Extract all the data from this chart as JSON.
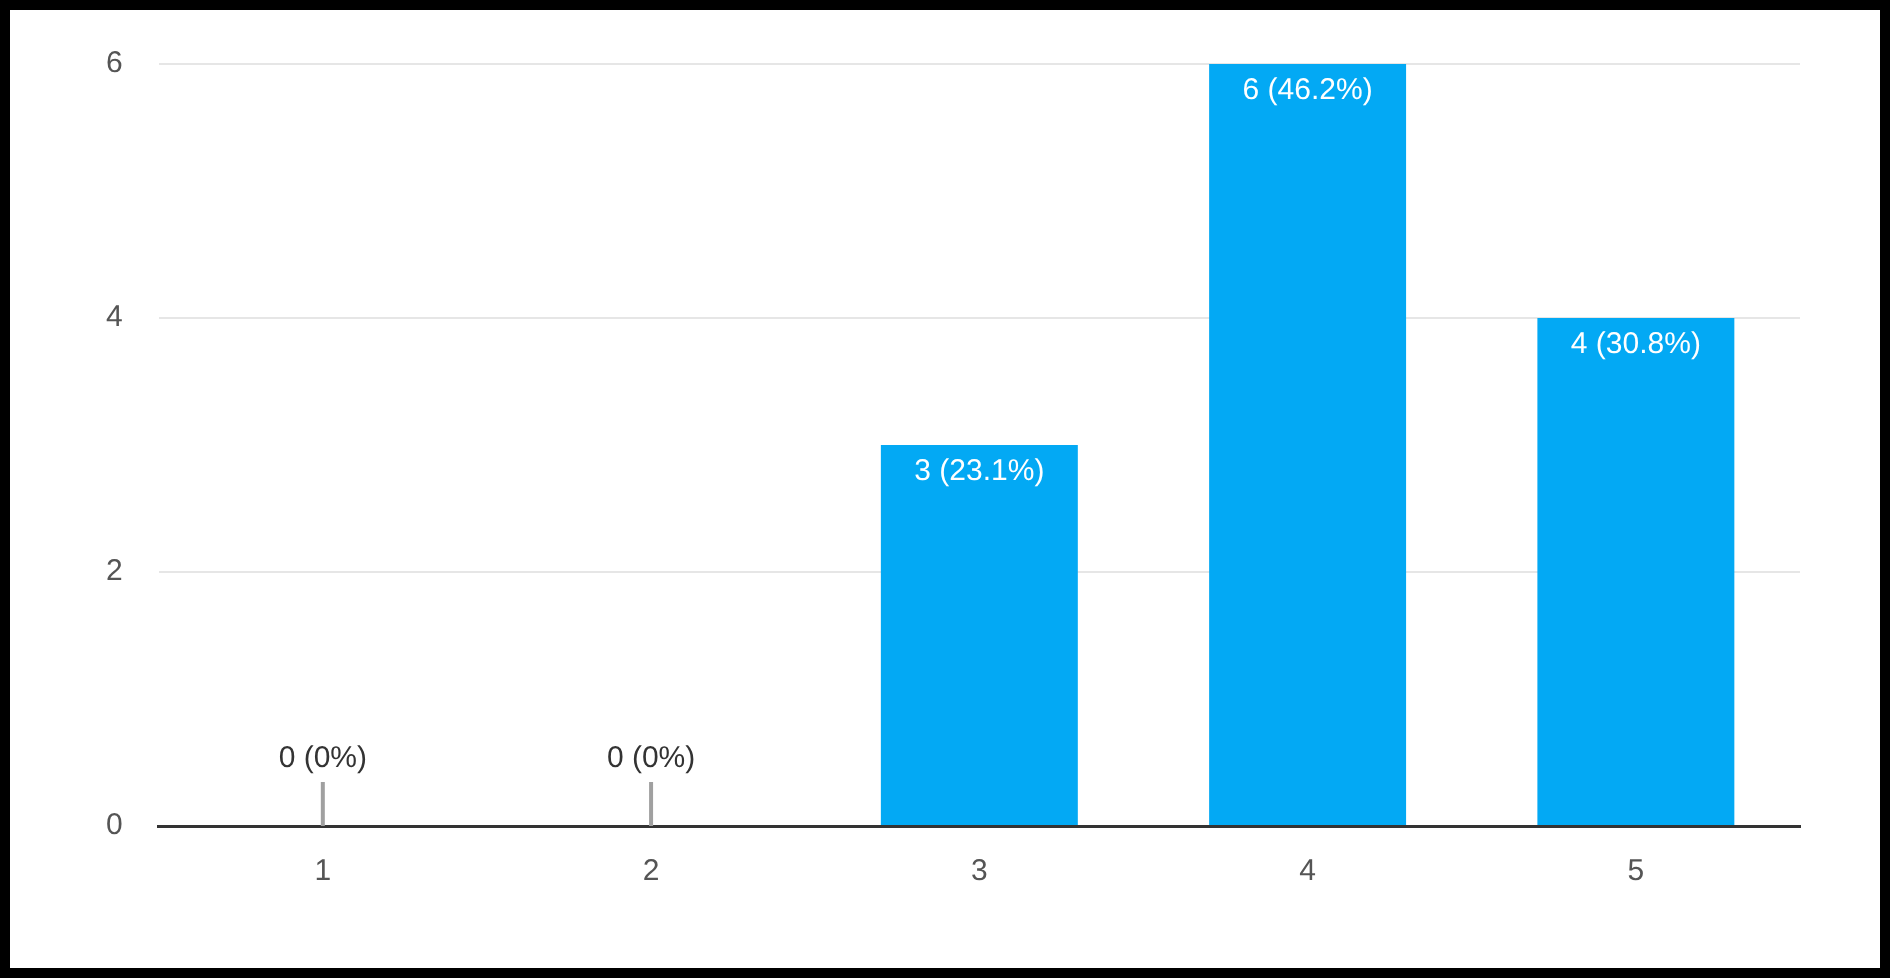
{
  "chart_data": {
    "type": "bar",
    "categories": [
      "1",
      "2",
      "3",
      "4",
      "5"
    ],
    "values": [
      0,
      0,
      3,
      6,
      4
    ],
    "color": "#03a9f4",
    "value_labels": [
      "0 (0%)",
      "0 (0%)",
      "3 (23.1%)",
      "6 (46.2%)",
      "4 (30.8%)"
    ],
    "ylim": [
      0,
      6
    ],
    "yticks": [
      0,
      2,
      4,
      6
    ],
    "grid": "y",
    "legend": false
  }
}
